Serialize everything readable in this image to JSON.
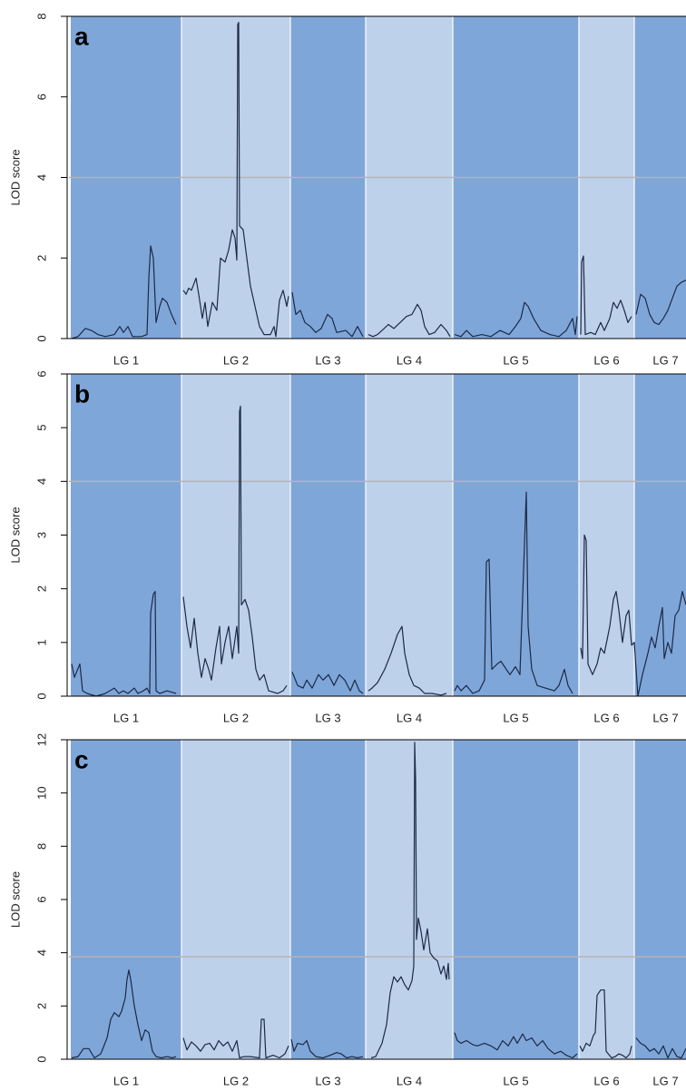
{
  "chart_data": [
    {
      "type": "line",
      "panel_label": "a",
      "y_label": "LOD score",
      "color": "#1b2a46",
      "threshold": 4,
      "threshold_color": "#b4b4b4",
      "xlim": [
        0,
        680
      ],
      "ylim": [
        0,
        8
      ],
      "yticks": [
        0,
        2,
        4,
        6,
        8
      ],
      "regions": [
        {
          "label": "LG 1",
          "start": 2,
          "end": 124,
          "color": "#7fa6d9"
        },
        {
          "label": "LG 2",
          "start": 124,
          "end": 244,
          "color": "#bed1eb"
        },
        {
          "label": "LG 3",
          "start": 244,
          "end": 327,
          "color": "#7fa6d9"
        },
        {
          "label": "LG 4",
          "start": 327,
          "end": 423,
          "color": "#bed1eb"
        },
        {
          "label": "LG 5",
          "start": 423,
          "end": 562,
          "color": "#7fa6d9"
        },
        {
          "label": "LG 6",
          "start": 562,
          "end": 623,
          "color": "#bed1eb"
        },
        {
          "label": "LG 7",
          "start": 623,
          "end": 692,
          "color": "#7fa6d9"
        }
      ],
      "x": [
        3,
        10,
        18,
        25,
        32,
        40,
        50,
        56,
        60,
        65,
        70,
        80,
        86,
        88,
        90,
        93,
        96,
        100,
        103,
        108,
        113,
        118,
        124,
        126,
        129,
        132,
        135,
        140,
        143,
        147,
        150,
        153,
        158,
        163,
        167,
        172,
        176,
        180,
        183,
        185,
        186,
        187,
        188,
        192,
        196,
        200,
        205,
        210,
        215,
        222,
        226,
        228,
        232,
        236,
        240,
        242,
        244,
        246,
        250,
        255,
        260,
        266,
        272,
        278,
        285,
        290,
        295,
        305,
        312,
        318,
        324,
        327,
        330,
        335,
        340,
        345,
        352,
        358,
        365,
        372,
        378,
        384,
        388,
        392,
        397,
        403,
        410,
        416,
        420,
        423,
        425,
        432,
        438,
        445,
        455,
        465,
        475,
        485,
        492,
        498,
        502,
        506,
        512,
        520,
        530,
        540,
        548,
        555,
        558,
        560,
        562,
        564,
        565,
        567,
        569,
        575,
        580,
        586,
        590,
        596,
        600,
        604,
        608,
        612,
        616,
        620,
        623,
        625,
        630,
        635,
        640,
        645,
        650,
        655,
        660,
        665,
        670,
        675,
        680
      ],
      "values": [
        0,
        0.05,
        0.25,
        0.2,
        0.1,
        0.05,
        0.1,
        0.3,
        0.15,
        0.3,
        0.05,
        0.05,
        0.1,
        1.5,
        2.3,
        2.0,
        0.4,
        0.8,
        1.0,
        0.9,
        0.6,
        0.35,
        null,
        1.2,
        1.1,
        1.25,
        1.2,
        1.5,
        1.1,
        0.5,
        0.9,
        0.3,
        0.9,
        0.7,
        2.0,
        1.9,
        2.2,
        2.7,
        2.5,
        1.95,
        7.8,
        7.85,
        2.8,
        2.7,
        2.0,
        1.3,
        0.8,
        0.3,
        0.1,
        0.1,
        0.3,
        0.05,
        0.95,
        1.2,
        0.8,
        1.05,
        null,
        1.15,
        0.6,
        0.7,
        0.4,
        0.3,
        0.15,
        0.25,
        0.6,
        0.5,
        0.15,
        0.2,
        0.05,
        0.3,
        0.05,
        null,
        0.1,
        0.05,
        0.1,
        0.2,
        0.35,
        0.25,
        0.4,
        0.55,
        0.6,
        0.85,
        0.7,
        0.3,
        0.1,
        0.15,
        0.35,
        0.2,
        0.05,
        null,
        0.1,
        0.05,
        0.2,
        0.05,
        0.1,
        0.05,
        0.2,
        0.1,
        0.3,
        0.5,
        0.9,
        0.8,
        0.5,
        0.2,
        0.1,
        0.05,
        0.2,
        0.5,
        0.1,
        0.55,
        null,
        0.1,
        1.9,
        2.05,
        0.1,
        0.15,
        0.1,
        0.4,
        0.2,
        0.5,
        0.9,
        0.75,
        0.95,
        0.7,
        0.4,
        0.55,
        null,
        0.6,
        1.1,
        1.0,
        0.6,
        0.4,
        0.35,
        0.5,
        0.7,
        1.0,
        1.3,
        1.4,
        1.45
      ]
    },
    {
      "type": "line",
      "panel_label": "b",
      "y_label": "LOD score",
      "color": "#1b2a46",
      "threshold": 4,
      "threshold_color": "#b4b4b4",
      "xlim": [
        0,
        680
      ],
      "ylim": [
        0,
        6
      ],
      "yticks": [
        0,
        1,
        2,
        3,
        4,
        5,
        6
      ],
      "regions": [
        {
          "label": "LG 1",
          "start": 2,
          "end": 124,
          "color": "#7fa6d9"
        },
        {
          "label": "LG 2",
          "start": 124,
          "end": 244,
          "color": "#bed1eb"
        },
        {
          "label": "LG 3",
          "start": 244,
          "end": 327,
          "color": "#7fa6d9"
        },
        {
          "label": "LG 4",
          "start": 327,
          "end": 423,
          "color": "#bed1eb"
        },
        {
          "label": "LG 5",
          "start": 423,
          "end": 562,
          "color": "#7fa6d9"
        },
        {
          "label": "LG 6",
          "start": 562,
          "end": 623,
          "color": "#bed1eb"
        },
        {
          "label": "LG 7",
          "start": 623,
          "end": 692,
          "color": "#7fa6d9"
        }
      ],
      "x": [
        3,
        6,
        12,
        15,
        20,
        30,
        40,
        50,
        55,
        60,
        65,
        72,
        76,
        82,
        86,
        89,
        90,
        93,
        95,
        96,
        100,
        108,
        118,
        124,
        126,
        130,
        134,
        138,
        142,
        146,
        150,
        154,
        157,
        162,
        166,
        168,
        172,
        176,
        180,
        185,
        187,
        188,
        189,
        190,
        194,
        198,
        202,
        206,
        210,
        215,
        220,
        230,
        236,
        240,
        244,
        246,
        252,
        258,
        262,
        268,
        275,
        280,
        286,
        292,
        298,
        304,
        310,
        315,
        320,
        324,
        327,
        330,
        334,
        340,
        348,
        355,
        362,
        367,
        370,
        375,
        380,
        386,
        392,
        400,
        410,
        416,
        423,
        425,
        428,
        432,
        438,
        445,
        452,
        458,
        460,
        463,
        466,
        472,
        476,
        480,
        486,
        492,
        497,
        504,
        506,
        510,
        516,
        525,
        535,
        540,
        546,
        550,
        555,
        562,
        564,
        566,
        568,
        570,
        572,
        577,
        582,
        586,
        590,
        596,
        600,
        603,
        606,
        610,
        614,
        617,
        620,
        623,
        627,
        632,
        638,
        642,
        646,
        650,
        654,
        656,
        660,
        664,
        668,
        672,
        676,
        680
      ],
      "values": [
        0.6,
        0.35,
        0.6,
        0.1,
        0.05,
        0,
        0.05,
        0.15,
        0.05,
        0.1,
        0.05,
        0.15,
        0.05,
        0.1,
        0.15,
        0.05,
        1.55,
        1.9,
        1.95,
        0.1,
        0.05,
        0.1,
        0.05,
        null,
        1.85,
        1.3,
        0.9,
        1.45,
        0.8,
        0.35,
        0.7,
        0.5,
        0.3,
        0.9,
        1.3,
        0.6,
        1.0,
        1.3,
        0.7,
        1.3,
        0.8,
        5.3,
        5.4,
        1.7,
        1.8,
        1.6,
        1.1,
        0.5,
        0.3,
        0.4,
        0.1,
        0.05,
        0.1,
        0.2,
        null,
        0.45,
        0.2,
        0.15,
        0.3,
        0.15,
        0.4,
        0.3,
        0.4,
        0.2,
        0.4,
        0.3,
        0.1,
        0.3,
        0.1,
        0.05,
        null,
        0.1,
        0.15,
        0.25,
        0.5,
        0.8,
        1.15,
        1.3,
        0.8,
        0.4,
        0.2,
        0.15,
        0.05,
        0.05,
        0.02,
        0.05,
        null,
        0.1,
        0.2,
        0.1,
        0.2,
        0.05,
        0.1,
        0.3,
        2.5,
        2.55,
        0.5,
        0.6,
        0.65,
        0.55,
        0.4,
        0.55,
        0.4,
        3.8,
        1.3,
        0.5,
        0.2,
        0.15,
        0.1,
        0.2,
        0.5,
        0.2,
        0.05,
        null,
        0.9,
        0.7,
        3.0,
        2.9,
        0.6,
        0.4,
        0.6,
        0.9,
        0.8,
        1.3,
        1.8,
        1.95,
        1.6,
        1.0,
        1.5,
        1.6,
        0.95,
        1.0,
        0,
        0.4,
        0.8,
        1.1,
        0.9,
        1.3,
        1.65,
        0.7,
        1.0,
        0.8,
        1.5,
        1.6,
        1.95,
        1.7
      ]
    },
    {
      "type": "line",
      "panel_label": "c",
      "y_label": "LOD score",
      "color": "#1b2a46",
      "threshold": 3.85,
      "threshold_color": "#b4b4b4",
      "xlim": [
        0,
        680
      ],
      "ylim": [
        0,
        12
      ],
      "yticks": [
        0,
        2,
        4,
        6,
        8,
        10,
        12
      ],
      "regions": [
        {
          "label": "LG 1",
          "start": 2,
          "end": 124,
          "color": "#7fa6d9"
        },
        {
          "label": "LG 2",
          "start": 124,
          "end": 244,
          "color": "#bed1eb"
        },
        {
          "label": "LG 3",
          "start": 244,
          "end": 327,
          "color": "#7fa6d9"
        },
        {
          "label": "LG 4",
          "start": 327,
          "end": 423,
          "color": "#bed1eb"
        },
        {
          "label": "LG 5",
          "start": 423,
          "end": 562,
          "color": "#7fa6d9"
        },
        {
          "label": "LG 6",
          "start": 562,
          "end": 623,
          "color": "#bed1eb"
        },
        {
          "label": "LG 7",
          "start": 623,
          "end": 692,
          "color": "#7fa6d9"
        }
      ],
      "x": [
        3,
        10,
        16,
        22,
        28,
        35,
        42,
        46,
        50,
        55,
        58,
        62,
        64,
        66,
        68,
        72,
        76,
        80,
        84,
        88,
        92,
        96,
        102,
        108,
        114,
        118,
        124,
        126,
        130,
        135,
        140,
        145,
        150,
        155,
        160,
        165,
        170,
        175,
        180,
        185,
        188,
        193,
        200,
        210,
        212,
        215,
        217,
        225,
        232,
        238,
        242,
        244,
        245,
        248,
        252,
        258,
        262,
        266,
        272,
        280,
        288,
        295,
        300,
        306,
        312,
        318,
        324,
        327,
        333,
        338,
        345,
        350,
        354,
        358,
        362,
        366,
        370,
        374,
        378,
        380,
        381,
        382,
        383,
        385,
        388,
        391,
        395,
        398,
        402,
        406,
        410,
        413,
        416,
        418,
        419,
        423,
        425,
        428,
        432,
        438,
        445,
        450,
        458,
        465,
        472,
        478,
        484,
        490,
        494,
        500,
        504,
        510,
        516,
        522,
        528,
        535,
        542,
        548,
        555,
        560,
        562,
        563,
        566,
        570,
        574,
        578,
        580,
        582,
        586,
        590,
        592,
        598,
        602,
        606,
        610,
        614,
        618,
        620,
        623,
        625,
        630,
        635,
        640,
        645,
        650,
        655,
        660,
        665,
        670,
        675,
        680
      ],
      "values": [
        0.05,
        0.1,
        0.4,
        0.4,
        0.05,
        0.2,
        0.8,
        1.5,
        1.75,
        1.6,
        1.8,
        2.3,
        3.0,
        3.35,
        3.0,
        2.0,
        1.3,
        0.7,
        1.1,
        1.0,
        0.3,
        0.1,
        0.05,
        0.1,
        0.05,
        0.1,
        null,
        0.8,
        0.35,
        0.65,
        0.5,
        0.3,
        0.55,
        0.6,
        0.35,
        0.7,
        0.5,
        0.65,
        0.3,
        0.7,
        0.05,
        0.1,
        0.1,
        0.05,
        1.5,
        1.5,
        0.05,
        0.15,
        0.05,
        0.2,
        0.5,
        null,
        0.75,
        0.3,
        0.6,
        0.55,
        0.7,
        0.3,
        0.1,
        0.05,
        0.15,
        0.25,
        0.2,
        0.05,
        0.1,
        0.05,
        0.1,
        null,
        0.05,
        0.1,
        0.6,
        1.3,
        2.5,
        3.1,
        2.9,
        3.1,
        2.8,
        2.6,
        2.95,
        3.5,
        11.9,
        10.5,
        4.5,
        5.3,
        4.8,
        4.1,
        4.9,
        4.0,
        3.8,
        3.7,
        3.2,
        3.5,
        3.0,
        3.6,
        3.0,
        null,
        1.0,
        0.7,
        0.6,
        0.7,
        0.55,
        0.5,
        0.6,
        0.5,
        0.35,
        0.7,
        0.5,
        0.85,
        0.6,
        0.95,
        0.7,
        0.8,
        0.5,
        0.7,
        0.4,
        0.2,
        0.3,
        0.15,
        0.05,
        0.2,
        null,
        0.5,
        0.3,
        0.6,
        0.5,
        0.9,
        1.0,
        2.4,
        2.6,
        2.6,
        0.3,
        0.05,
        0.1,
        0.2,
        0.15,
        0.05,
        0.2,
        0.5,
        null,
        0.8,
        0.6,
        0.5,
        0.3,
        0.4,
        0.2,
        0.5,
        0.05,
        0.4,
        0.1,
        0.05,
        0.4
      ]
    }
  ]
}
